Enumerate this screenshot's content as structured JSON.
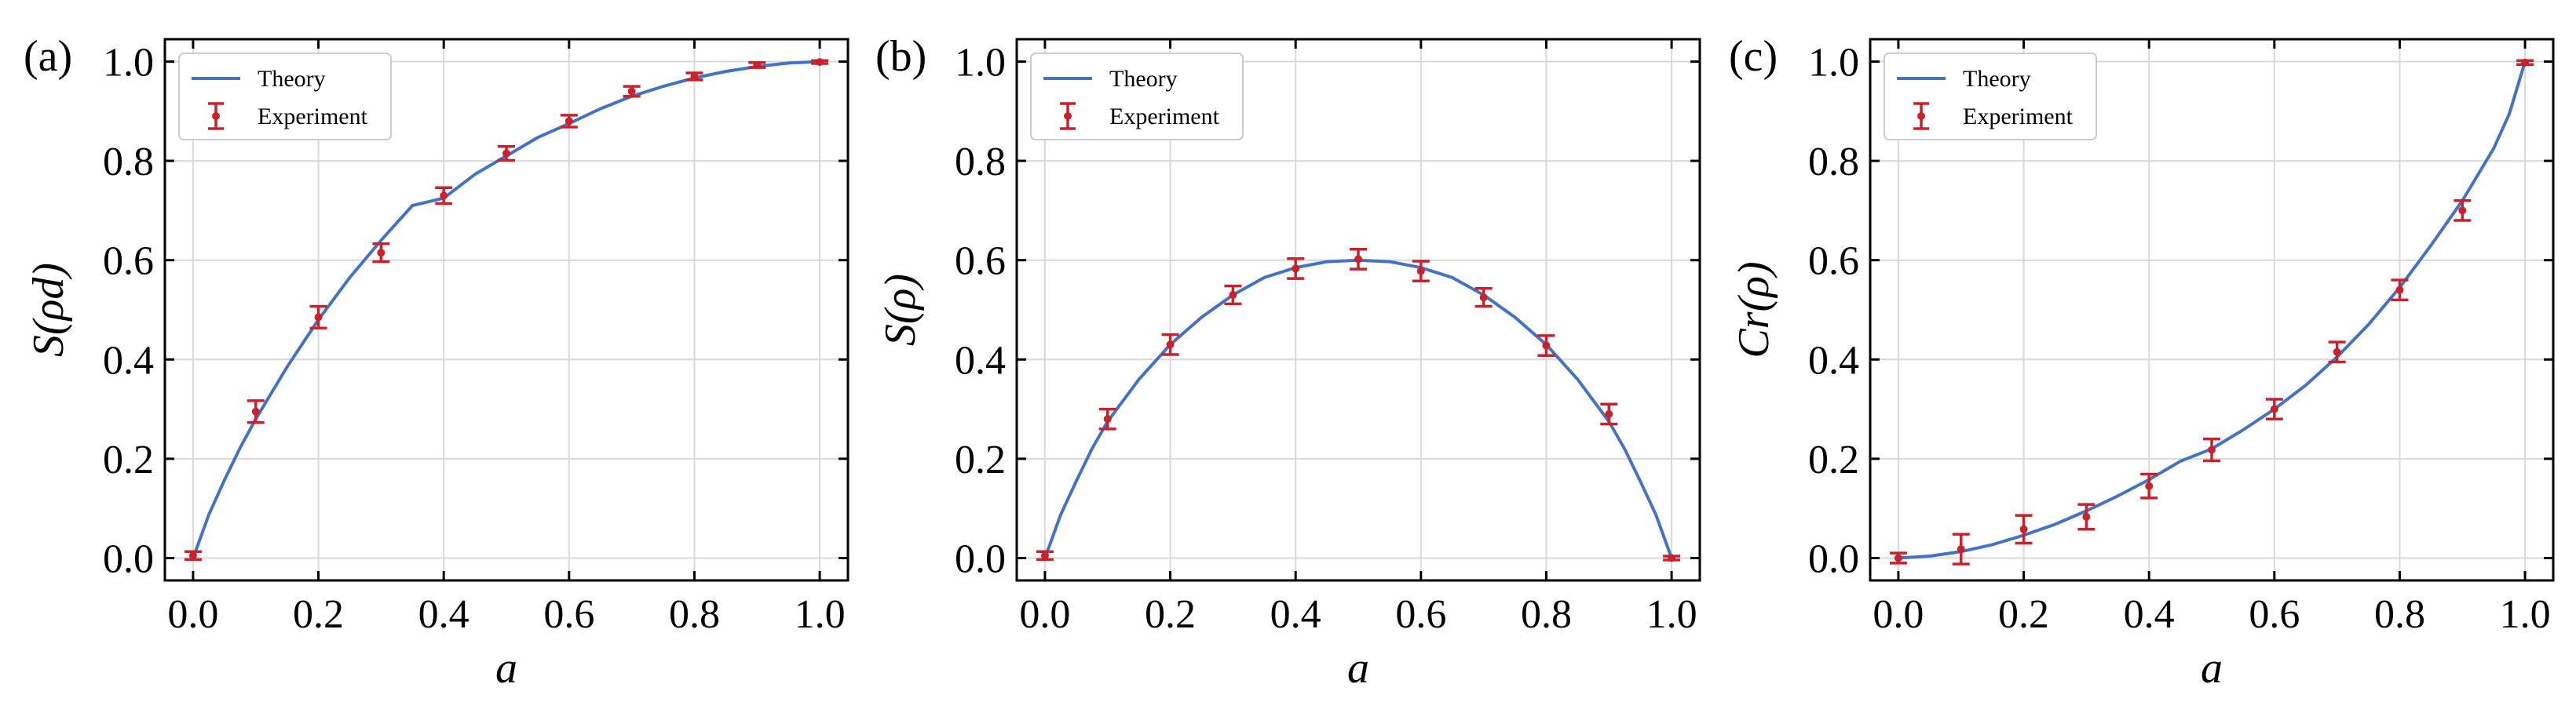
{
  "colors": {
    "theory": "#4472c4",
    "experiment": "#c8232c",
    "grid": "#d9d9d9",
    "frame": "#000000"
  },
  "chart_data": [
    {
      "type": "line",
      "panel_label": "(a)",
      "xlabel": "a",
      "ylabel": "S(ρd)",
      "xlim": [
        0,
        1
      ],
      "ylim": [
        0,
        1
      ],
      "xticks": [
        "0.0",
        "0.2",
        "0.4",
        "0.6",
        "0.8",
        "1.0"
      ],
      "yticks": [
        "0.0",
        "0.2",
        "0.4",
        "0.6",
        "0.8",
        "1.0"
      ],
      "grid": true,
      "legend": "top-left",
      "series": [
        {
          "name": "Theory",
          "type": "line",
          "x": [
            0.0,
            0.025,
            0.05,
            0.075,
            0.1,
            0.15,
            0.2,
            0.25,
            0.3,
            0.35,
            0.4,
            0.45,
            0.5,
            0.55,
            0.6,
            0.65,
            0.7,
            0.75,
            0.8,
            0.85,
            0.9,
            0.95,
            1.0
          ],
          "y": [
            0.0,
            0.087,
            0.157,
            0.222,
            0.28,
            0.385,
            0.48,
            0.565,
            0.64,
            0.71,
            0.725,
            0.773,
            0.81,
            0.847,
            0.875,
            0.905,
            0.93,
            0.95,
            0.967,
            0.98,
            0.99,
            0.997,
            1.0
          ]
        },
        {
          "name": "Experiment",
          "type": "errorbar",
          "x": [
            0.0,
            0.1,
            0.2,
            0.3,
            0.4,
            0.5,
            0.6,
            0.7,
            0.8,
            0.9,
            1.0
          ],
          "y": [
            0.005,
            0.295,
            0.485,
            0.615,
            0.73,
            0.815,
            0.88,
            0.94,
            0.97,
            0.993,
            0.999
          ],
          "yerr": [
            0.008,
            0.022,
            0.022,
            0.018,
            0.016,
            0.014,
            0.012,
            0.01,
            0.007,
            0.005,
            0.003
          ]
        }
      ]
    },
    {
      "type": "line",
      "panel_label": "(b)",
      "xlabel": "a",
      "ylabel": "S(ρ)",
      "xlim": [
        0,
        1
      ],
      "ylim": [
        0,
        1
      ],
      "xticks": [
        "0.0",
        "0.2",
        "0.4",
        "0.6",
        "0.8",
        "1.0"
      ],
      "yticks": [
        "0.0",
        "0.2",
        "0.4",
        "0.6",
        "0.8",
        "1.0"
      ],
      "grid": true,
      "legend": "top-left",
      "series": [
        {
          "name": "Theory",
          "type": "line",
          "x": [
            0.0,
            0.025,
            0.05,
            0.075,
            0.1,
            0.15,
            0.2,
            0.25,
            0.3,
            0.35,
            0.4,
            0.45,
            0.5,
            0.55,
            0.6,
            0.65,
            0.7,
            0.75,
            0.8,
            0.85,
            0.9,
            0.925,
            0.95,
            0.975,
            1.0
          ],
          "y": [
            0.0,
            0.087,
            0.155,
            0.22,
            0.275,
            0.36,
            0.43,
            0.485,
            0.53,
            0.565,
            0.585,
            0.597,
            0.6,
            0.597,
            0.585,
            0.565,
            0.53,
            0.485,
            0.43,
            0.36,
            0.275,
            0.22,
            0.155,
            0.087,
            0.0
          ]
        },
        {
          "name": "Experiment",
          "type": "errorbar",
          "x": [
            0.0,
            0.1,
            0.2,
            0.3,
            0.4,
            0.5,
            0.6,
            0.7,
            0.8,
            0.9,
            1.0
          ],
          "y": [
            0.005,
            0.28,
            0.43,
            0.53,
            0.583,
            0.602,
            0.578,
            0.525,
            0.428,
            0.29,
            0.0
          ],
          "yerr": [
            0.008,
            0.02,
            0.02,
            0.018,
            0.02,
            0.02,
            0.02,
            0.018,
            0.02,
            0.02,
            0.004
          ]
        }
      ]
    },
    {
      "type": "line",
      "panel_label": "(c)",
      "xlabel": "a",
      "ylabel": "Cr(ρ)",
      "xlim": [
        0,
        1
      ],
      "ylim": [
        0,
        1
      ],
      "xticks": [
        "0.0",
        "0.2",
        "0.4",
        "0.6",
        "0.8",
        "1.0"
      ],
      "yticks": [
        "0.0",
        "0.2",
        "0.4",
        "0.6",
        "0.8",
        "1.0"
      ],
      "grid": true,
      "legend": "top-left",
      "series": [
        {
          "name": "Theory",
          "type": "line",
          "x": [
            0.0,
            0.05,
            0.1,
            0.15,
            0.2,
            0.25,
            0.3,
            0.35,
            0.4,
            0.45,
            0.5,
            0.55,
            0.6,
            0.65,
            0.7,
            0.75,
            0.8,
            0.85,
            0.9,
            0.95,
            0.975,
            1.0
          ],
          "y": [
            0.0,
            0.004,
            0.013,
            0.027,
            0.046,
            0.068,
            0.095,
            0.125,
            0.158,
            0.195,
            0.22,
            0.258,
            0.3,
            0.348,
            0.405,
            0.47,
            0.545,
            0.63,
            0.72,
            0.825,
            0.895,
            1.0
          ]
        },
        {
          "name": "Experiment",
          "type": "errorbar",
          "x": [
            0.0,
            0.1,
            0.2,
            0.3,
            0.4,
            0.5,
            0.6,
            0.7,
            0.8,
            0.9,
            1.0
          ],
          "y": [
            0.0,
            0.018,
            0.058,
            0.083,
            0.145,
            0.218,
            0.3,
            0.415,
            0.54,
            0.7,
            0.998
          ],
          "yerr": [
            0.01,
            0.03,
            0.028,
            0.025,
            0.024,
            0.022,
            0.02,
            0.02,
            0.02,
            0.02,
            0.004
          ]
        }
      ]
    }
  ]
}
